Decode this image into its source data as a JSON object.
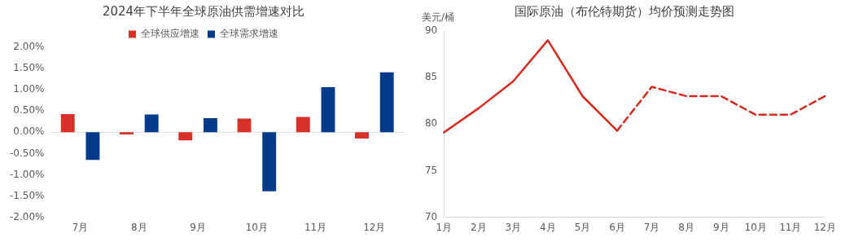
{
  "chart_data": [
    {
      "type": "bar",
      "title": "2024年下半年全球原油供需增速对比",
      "categories": [
        "7月",
        "8月",
        "9月",
        "10月",
        "11月",
        "12月"
      ],
      "series": [
        {
          "name": "全球供应增速",
          "color": "#d7322a",
          "values": [
            0.43,
            -0.05,
            -0.19,
            0.32,
            0.36,
            -0.15
          ]
        },
        {
          "name": "全球需求增速",
          "color": "#003a88",
          "values": [
            -0.65,
            0.42,
            0.33,
            -1.39,
            1.06,
            1.41
          ]
        }
      ],
      "ylim": [
        -2,
        2
      ],
      "yticks": [
        {
          "value": -2,
          "label": "-2.00%"
        },
        {
          "value": -1.5,
          "label": "-1.50%"
        },
        {
          "value": -1,
          "label": "-1.00%"
        },
        {
          "value": -0.5,
          "label": "-0.50%"
        },
        {
          "value": 0,
          "label": "0.00%"
        },
        {
          "value": 0.5,
          "label": "0.50%"
        },
        {
          "value": 1,
          "label": "1.00%"
        },
        {
          "value": 1.5,
          "label": "1.50%"
        },
        {
          "value": 2,
          "label": "2.00%"
        }
      ],
      "ref_lines": [
        {
          "axis": "y",
          "value": 0,
          "color": "#d9d9d9"
        }
      ],
      "grid": false,
      "legend": "top"
    },
    {
      "type": "line",
      "title": "国际原油（布伦特期货）均价预测走势图",
      "ylabel": "美元/桶",
      "categories": [
        "1月",
        "2月",
        "3月",
        "4月",
        "5月",
        "6月",
        "7月",
        "8月",
        "9月",
        "10月",
        "11月",
        "12月"
      ],
      "series": [
        {
          "color": "#d42a20",
          "line_style": "solid",
          "values": [
            79.1,
            81.7,
            84.6,
            89.0,
            83.0,
            79.3,
            null,
            null,
            null,
            null,
            null,
            null
          ]
        },
        {
          "color": "#d42a20",
          "line_style": "dashed",
          "values": [
            null,
            null,
            null,
            null,
            null,
            79.3,
            84.0,
            83.0,
            83.0,
            81.0,
            81.0,
            83.0
          ]
        }
      ],
      "ylim": [
        70,
        90
      ],
      "yticks": [
        70,
        75,
        80,
        85,
        90
      ],
      "grid": false,
      "legend": false,
      "marker": "none"
    }
  ]
}
